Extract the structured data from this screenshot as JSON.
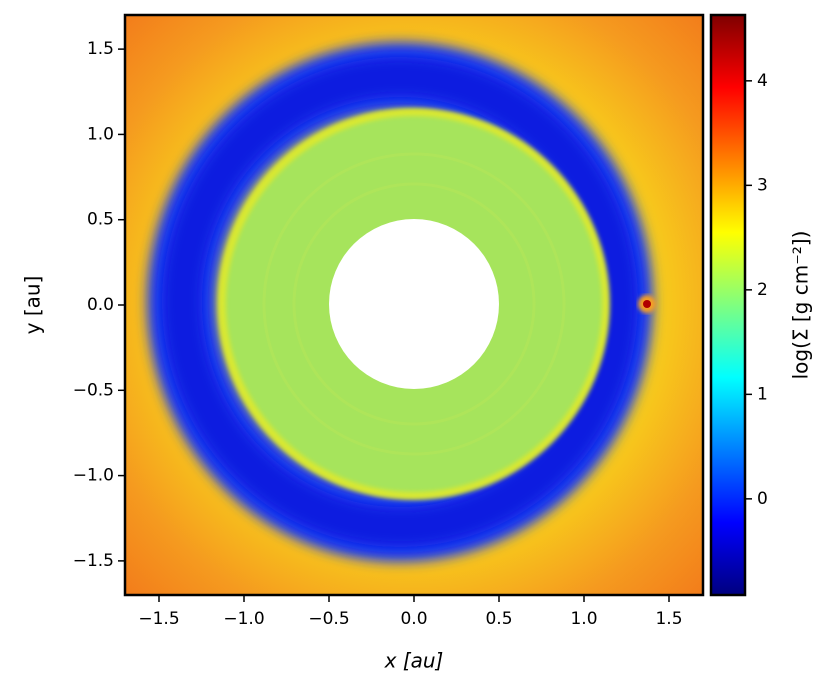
{
  "chart_data": {
    "type": "heatmap",
    "xlabel": "x [au]",
    "ylabel": "y [au]",
    "clabel": "log(Σ [g cm⁻²])",
    "xlim": [
      -1.7,
      1.7
    ],
    "ylim": [
      -1.7,
      1.7
    ],
    "xticks": [
      {
        "value": -1.5,
        "label": "−1.5"
      },
      {
        "value": -1.0,
        "label": "−1.0"
      },
      {
        "value": -0.5,
        "label": "−0.5"
      },
      {
        "value": 0,
        "label": "0.0"
      },
      0.5,
      {
        "value": 1.0,
        "label": "1.0"
      },
      1.5
    ],
    "yticks": [
      {
        "value": -1.5,
        "label": "−1.5"
      },
      {
        "value": -1.0,
        "label": "−1.0"
      },
      {
        "value": -0.5,
        "label": "−0.5"
      },
      {
        "value": 0,
        "label": "0.0"
      },
      0.5,
      {
        "value": 1.0,
        "label": "1.0"
      },
      1.5
    ],
    "clim": [
      -0.92,
      4.63
    ],
    "cticks": [
      0,
      1,
      2,
      3,
      4
    ],
    "colormap": "jet"
  }
}
